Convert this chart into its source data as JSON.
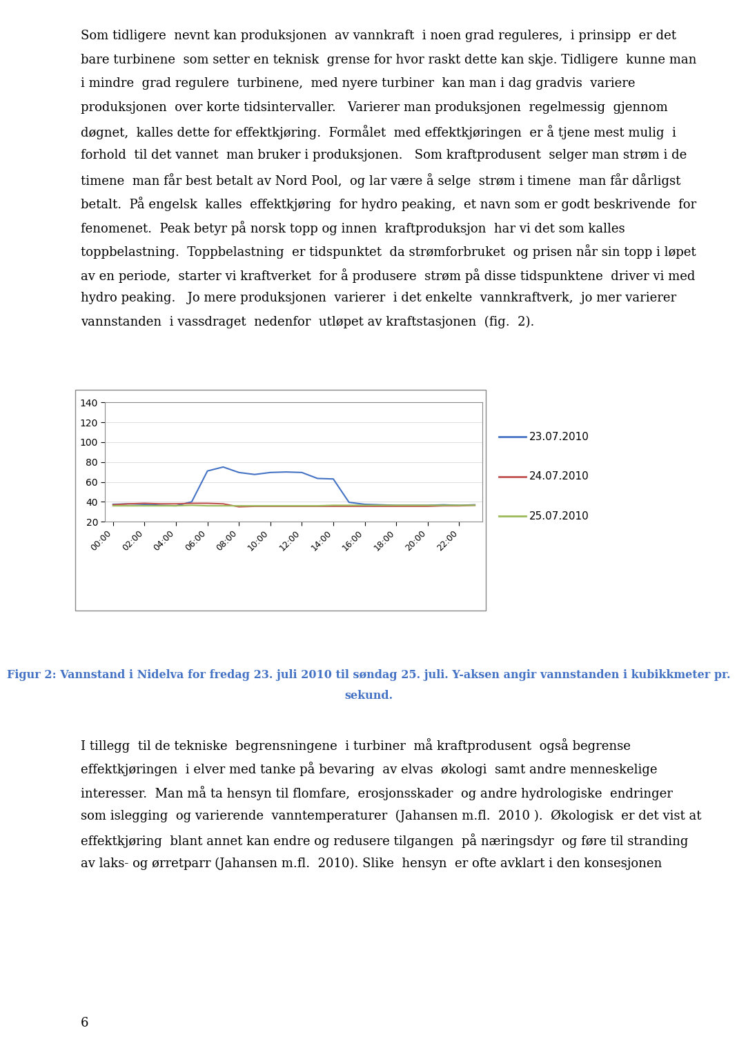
{
  "x_labels": [
    "00:00",
    "02:00",
    "04:00",
    "06:00",
    "08:00",
    "10:00",
    "12:00",
    "14:00",
    "16:00",
    "18:00",
    "20:00",
    "22:00"
  ],
  "ylim": [
    20,
    140
  ],
  "yticks": [
    20,
    40,
    60,
    80,
    100,
    120,
    140
  ],
  "series_order": [
    "23.07.2010",
    "24.07.2010",
    "25.07.2010"
  ],
  "series": {
    "23.07.2010": {
      "color": "#4472C4",
      "values": [
        37.5,
        38.0,
        37.5,
        36.5,
        36.0,
        40.0,
        71.0,
        75.0,
        69.5,
        67.5,
        69.5,
        70.0,
        69.5,
        63.5,
        63.0,
        39.5,
        37.5,
        37.0,
        36.5,
        36.5,
        36.5,
        37.0,
        36.5,
        37.0
      ]
    },
    "24.07.2010": {
      "color": "#C0504D",
      "values": [
        37.0,
        38.0,
        38.5,
        38.0,
        38.0,
        38.5,
        38.5,
        38.0,
        35.0,
        35.5,
        35.5,
        35.5,
        35.5,
        35.5,
        35.5,
        35.5,
        35.5,
        35.5,
        35.5,
        35.5,
        35.5,
        36.0,
        36.0,
        36.5
      ]
    },
    "25.07.2010": {
      "color": "#9BBB59",
      "values": [
        36.0,
        36.0,
        36.0,
        36.0,
        36.0,
        36.5,
        36.0,
        36.0,
        36.0,
        36.0,
        36.0,
        36.0,
        36.0,
        36.0,
        36.5,
        36.5,
        36.5,
        36.5,
        36.5,
        36.5,
        36.5,
        36.5,
        36.5,
        36.5
      ]
    }
  },
  "legend_labels": [
    "23.07.2010",
    "24.07.2010",
    "25.07.2010"
  ],
  "legend_colors": [
    "#4472C4",
    "#C0504D",
    "#9BBB59"
  ],
  "caption_line1": "Figur 2: Vannstand i Nidelva for fredag 23. juli 2010 til søndag 25. juli. Y-aksen angir vannstanden i kubikkmeter pr.",
  "caption_line2": "sekund.",
  "caption_color": "#4472C4",
  "body_texts": [
    "Som tidligere  nevnt kan produksjonen  av vannkraft  i noen grad reguleres,  i prinsipp  er det",
    "bare turbinene  som setter en teknisk  grense for hvor raskt dette kan skje. Tidligere  kunne man",
    "i mindre  grad regulere  turbinene,  med nyere turbiner  kan man i dag gradvis  variere",
    "produksjonen  over korte tidsintervaller.   Varierer man produksjonen  regelmessig  gjennom",
    "døgnet,  kalles dette for effektkjøring.  Formålet  med effektkjøringen  er å tjene mest mulig  i",
    "forhold  til det vannet  man bruker i produksjonen.   Som kraftprodusent  selger man strøm i de",
    "timene  man får best betalt av Nord Pool,  og lar være å selge  strøm i timene  man får dårligst",
    "betalt.  På engelsk  kalles  effektkjøring  for hydro peaking,  et navn som er godt beskrivende  for",
    "fenomenet.  Peak betyr på norsk topp og innen  kraftproduksjon  har vi det som kalles",
    "toppbelastning.  Toppbelastning  er tidspunktet  da strømforbruket  og prisen når sin topp i løpet",
    "av en periode,  starter vi kraftverket  for å produsere  strøm på disse tidspunktene  driver vi med",
    "hydro peaking.   Jo mere produksjonen  varierer  i det enkelte  vannkraftverk,  jo mer varierer",
    "vannstanden  i vassdraget  nedenfor  utløpet av kraftstasjonen  (fig.  2)."
  ],
  "bottom_texts": [
    "I tillegg  til de tekniske  begrensningene  i turbiner  må kraftprodusent  også begrense",
    "effektkjøringen  i elver med tanke på bevaring  av elvas  økologi  samt andre menneskelige",
    "interesser.  Man må ta hensyn til flomfare,  erosjonsskader  og andre hydrologiske  endringer",
    "som islegging  og varierende  vanntemperaturer  (Jahansen m.fl.  2010 ).  Økologisk  er det vist at",
    "effektkjøring  blant annet kan endre og redusere tilgangen  på næringsdyr  og føre til stranding",
    "av laks- og ørretparr (Jahansen m.fl.  2010). Slike  hensyn  er ofte avklart i den konsesjonen"
  ],
  "page_number": "6",
  "background_color": "#FFFFFF",
  "font_size_body": 13.0,
  "font_size_caption": 11.5,
  "chart_legend_fontsize": 11
}
